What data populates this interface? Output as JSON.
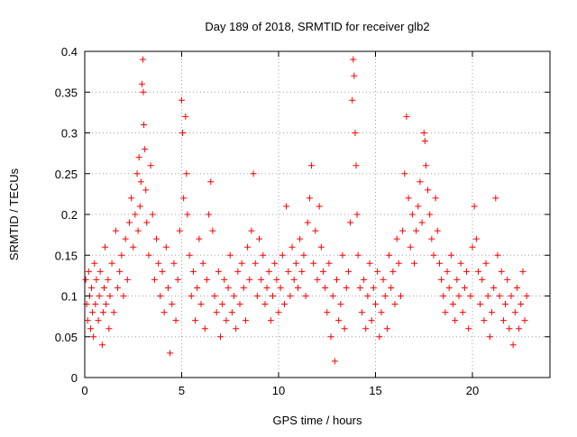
{
  "chart_data": {
    "type": "scatter",
    "title": "Day 189 of 2018, SRMTID for receiver glb2",
    "xlabel": "GPS time / hours",
    "ylabel": "SRMTID / TECUs",
    "xlim": [
      0,
      24
    ],
    "ylim": [
      0,
      0.4
    ],
    "xticks": [
      0,
      5,
      10,
      15,
      20
    ],
    "xtick_labels": [
      "0",
      "5",
      "10",
      "15",
      "20"
    ],
    "yticks": [
      0,
      0.05,
      0.1,
      0.15,
      0.2,
      0.25,
      0.3,
      0.35,
      0.4
    ],
    "ytick_labels": [
      "0",
      "0.05",
      "0.1",
      "0.15",
      "0.2",
      "0.25",
      "0.3",
      "0.35",
      "0.4"
    ],
    "grid": true,
    "marker": "+",
    "color": "#ff0000",
    "series": [
      {
        "name": "SRMTID",
        "points": [
          [
            0.05,
            0.12
          ],
          [
            0.1,
            0.09
          ],
          [
            0.15,
            0.07
          ],
          [
            0.2,
            0.13
          ],
          [
            0.25,
            0.1
          ],
          [
            0.3,
            0.06
          ],
          [
            0.35,
            0.11
          ],
          [
            0.4,
            0.08
          ],
          [
            0.45,
            0.05
          ],
          [
            0.5,
            0.14
          ],
          [
            0.55,
            0.09
          ],
          [
            0.6,
            0.12
          ],
          [
            0.7,
            0.07
          ],
          [
            0.75,
            0.1
          ],
          [
            0.8,
            0.13
          ],
          [
            0.9,
            0.04
          ],
          [
            0.95,
            0.08
          ],
          [
            1.0,
            0.11
          ],
          [
            1.05,
            0.16
          ],
          [
            1.1,
            0.09
          ],
          [
            1.2,
            0.12
          ],
          [
            1.25,
            0.06
          ],
          [
            1.3,
            0.1
          ],
          [
            1.4,
            0.14
          ],
          [
            1.5,
            0.08
          ],
          [
            1.6,
            0.18
          ],
          [
            1.7,
            0.11
          ],
          [
            1.8,
            0.13
          ],
          [
            1.9,
            0.15
          ],
          [
            2.0,
            0.1
          ],
          [
            2.1,
            0.17
          ],
          [
            2.2,
            0.12
          ],
          [
            2.3,
            0.19
          ],
          [
            2.4,
            0.22
          ],
          [
            2.5,
            0.16
          ],
          [
            2.6,
            0.2
          ],
          [
            2.7,
            0.25
          ],
          [
            2.75,
            0.18
          ],
          [
            2.8,
            0.27
          ],
          [
            2.85,
            0.21
          ],
          [
            2.9,
            0.24
          ],
          [
            2.95,
            0.36
          ],
          [
            3.0,
            0.39
          ],
          [
            3.02,
            0.35
          ],
          [
            3.05,
            0.31
          ],
          [
            3.1,
            0.28
          ],
          [
            3.15,
            0.23
          ],
          [
            3.2,
            0.19
          ],
          [
            3.3,
            0.15
          ],
          [
            3.4,
            0.26
          ],
          [
            3.5,
            0.2
          ],
          [
            3.6,
            0.12
          ],
          [
            3.7,
            0.17
          ],
          [
            3.8,
            0.14
          ],
          [
            3.9,
            0.1
          ],
          [
            4.0,
            0.13
          ],
          [
            4.1,
            0.08
          ],
          [
            4.2,
            0.16
          ],
          [
            4.3,
            0.11
          ],
          [
            4.4,
            0.03
          ],
          [
            4.5,
            0.09
          ],
          [
            4.6,
            0.14
          ],
          [
            4.7,
            0.07
          ],
          [
            4.8,
            0.12
          ],
          [
            4.9,
            0.18
          ],
          [
            5.0,
            0.34
          ],
          [
            5.05,
            0.3
          ],
          [
            5.1,
            0.22
          ],
          [
            5.2,
            0.32
          ],
          [
            5.25,
            0.25
          ],
          [
            5.3,
            0.2
          ],
          [
            5.4,
            0.15
          ],
          [
            5.5,
            0.1
          ],
          [
            5.6,
            0.13
          ],
          [
            5.7,
            0.07
          ],
          [
            5.8,
            0.11
          ],
          [
            5.9,
            0.17
          ],
          [
            6.0,
            0.09
          ],
          [
            6.1,
            0.14
          ],
          [
            6.2,
            0.06
          ],
          [
            6.3,
            0.12
          ],
          [
            6.4,
            0.2
          ],
          [
            6.5,
            0.24
          ],
          [
            6.6,
            0.18
          ],
          [
            6.7,
            0.1
          ],
          [
            6.8,
            0.08
          ],
          [
            6.9,
            0.13
          ],
          [
            7.0,
            0.05
          ],
          [
            7.1,
            0.09
          ],
          [
            7.2,
            0.12
          ],
          [
            7.3,
            0.07
          ],
          [
            7.4,
            0.11
          ],
          [
            7.5,
            0.15
          ],
          [
            7.6,
            0.08
          ],
          [
            7.7,
            0.1
          ],
          [
            7.8,
            0.06
          ],
          [
            7.9,
            0.13
          ],
          [
            8.0,
            0.09
          ],
          [
            8.1,
            0.14
          ],
          [
            8.2,
            0.11
          ],
          [
            8.3,
            0.07
          ],
          [
            8.4,
            0.16
          ],
          [
            8.5,
            0.12
          ],
          [
            8.6,
            0.18
          ],
          [
            8.7,
            0.25
          ],
          [
            8.8,
            0.14
          ],
          [
            8.9,
            0.1
          ],
          [
            9.0,
            0.17
          ],
          [
            9.1,
            0.12
          ],
          [
            9.2,
            0.15
          ],
          [
            9.3,
            0.09
          ],
          [
            9.4,
            0.11
          ],
          [
            9.5,
            0.13
          ],
          [
            9.6,
            0.07
          ],
          [
            9.7,
            0.1
          ],
          [
            9.8,
            0.14
          ],
          [
            9.9,
            0.12
          ],
          [
            10.0,
            0.08
          ],
          [
            10.1,
            0.11
          ],
          [
            10.2,
            0.15
          ],
          [
            10.3,
            0.09
          ],
          [
            10.4,
            0.21
          ],
          [
            10.5,
            0.13
          ],
          [
            10.6,
            0.1
          ],
          [
            10.7,
            0.16
          ],
          [
            10.8,
            0.12
          ],
          [
            10.9,
            0.14
          ],
          [
            11.0,
            0.11
          ],
          [
            11.1,
            0.17
          ],
          [
            11.2,
            0.13
          ],
          [
            11.3,
            0.15
          ],
          [
            11.4,
            0.1
          ],
          [
            11.5,
            0.19
          ],
          [
            11.6,
            0.22
          ],
          [
            11.7,
            0.26
          ],
          [
            11.8,
            0.14
          ],
          [
            11.9,
            0.18
          ],
          [
            12.0,
            0.12
          ],
          [
            12.1,
            0.21
          ],
          [
            12.2,
            0.16
          ],
          [
            12.3,
            0.13
          ],
          [
            12.4,
            0.11
          ],
          [
            12.5,
            0.08
          ],
          [
            12.6,
            0.14
          ],
          [
            12.7,
            0.05
          ],
          [
            12.8,
            0.1
          ],
          [
            12.9,
            0.02
          ],
          [
            13.0,
            0.12
          ],
          [
            13.1,
            0.07
          ],
          [
            13.2,
            0.09
          ],
          [
            13.3,
            0.15
          ],
          [
            13.4,
            0.06
          ],
          [
            13.5,
            0.11
          ],
          [
            13.6,
            0.13
          ],
          [
            13.7,
            0.19
          ],
          [
            13.8,
            0.34
          ],
          [
            13.85,
            0.39
          ],
          [
            13.9,
            0.37
          ],
          [
            13.95,
            0.3
          ],
          [
            14.0,
            0.26
          ],
          [
            14.05,
            0.2
          ],
          [
            14.1,
            0.15
          ],
          [
            14.2,
            0.11
          ],
          [
            14.3,
            0.08
          ],
          [
            14.4,
            0.12
          ],
          [
            14.5,
            0.06
          ],
          [
            14.6,
            0.1
          ],
          [
            14.7,
            0.14
          ],
          [
            14.8,
            0.07
          ],
          [
            14.9,
            0.11
          ],
          [
            15.0,
            0.09
          ],
          [
            15.1,
            0.13
          ],
          [
            15.2,
            0.05
          ],
          [
            15.3,
            0.08
          ],
          [
            15.4,
            0.12
          ],
          [
            15.5,
            0.1
          ],
          [
            15.6,
            0.06
          ],
          [
            15.7,
            0.15
          ],
          [
            15.8,
            0.11
          ],
          [
            15.9,
            0.13
          ],
          [
            16.0,
            0.09
          ],
          [
            16.1,
            0.17
          ],
          [
            16.2,
            0.14
          ],
          [
            16.3,
            0.1
          ],
          [
            16.4,
            0.18
          ],
          [
            16.5,
            0.25
          ],
          [
            16.6,
            0.32
          ],
          [
            16.7,
            0.22
          ],
          [
            16.8,
            0.16
          ],
          [
            16.9,
            0.2
          ],
          [
            17.0,
            0.14
          ],
          [
            17.1,
            0.18
          ],
          [
            17.2,
            0.21
          ],
          [
            17.3,
            0.24
          ],
          [
            17.4,
            0.19
          ],
          [
            17.5,
            0.3
          ],
          [
            17.55,
            0.29
          ],
          [
            17.6,
            0.26
          ],
          [
            17.7,
            0.23
          ],
          [
            17.8,
            0.2
          ],
          [
            17.9,
            0.17
          ],
          [
            18.0,
            0.15
          ],
          [
            18.1,
            0.22
          ],
          [
            18.2,
            0.18
          ],
          [
            18.3,
            0.14
          ],
          [
            18.4,
            0.12
          ],
          [
            18.5,
            0.1
          ],
          [
            18.6,
            0.08
          ],
          [
            18.7,
            0.13
          ],
          [
            18.8,
            0.11
          ],
          [
            18.9,
            0.15
          ],
          [
            19.0,
            0.09
          ],
          [
            19.1,
            0.07
          ],
          [
            19.2,
            0.12
          ],
          [
            19.3,
            0.1
          ],
          [
            19.4,
            0.14
          ],
          [
            19.5,
            0.08
          ],
          [
            19.6,
            0.11
          ],
          [
            19.7,
            0.13
          ],
          [
            19.8,
            0.06
          ],
          [
            19.9,
            0.1
          ],
          [
            20.0,
            0.16
          ],
          [
            20.1,
            0.21
          ],
          [
            20.2,
            0.17
          ],
          [
            20.3,
            0.13
          ],
          [
            20.4,
            0.09
          ],
          [
            20.5,
            0.12
          ],
          [
            20.6,
            0.07
          ],
          [
            20.7,
            0.14
          ],
          [
            20.8,
            0.1
          ],
          [
            20.9,
            0.05
          ],
          [
            21.0,
            0.08
          ],
          [
            21.1,
            0.11
          ],
          [
            21.2,
            0.22
          ],
          [
            21.3,
            0.15
          ],
          [
            21.4,
            0.1
          ],
          [
            21.5,
            0.13
          ],
          [
            21.6,
            0.07
          ],
          [
            21.7,
            0.09
          ],
          [
            21.8,
            0.12
          ],
          [
            21.9,
            0.06
          ],
          [
            22.0,
            0.1
          ],
          [
            22.1,
            0.04
          ],
          [
            22.2,
            0.08
          ],
          [
            22.3,
            0.11
          ],
          [
            22.4,
            0.06
          ],
          [
            22.5,
            0.09
          ],
          [
            22.6,
            0.13
          ],
          [
            22.7,
            0.07
          ],
          [
            22.8,
            0.1
          ]
        ]
      }
    ]
  }
}
